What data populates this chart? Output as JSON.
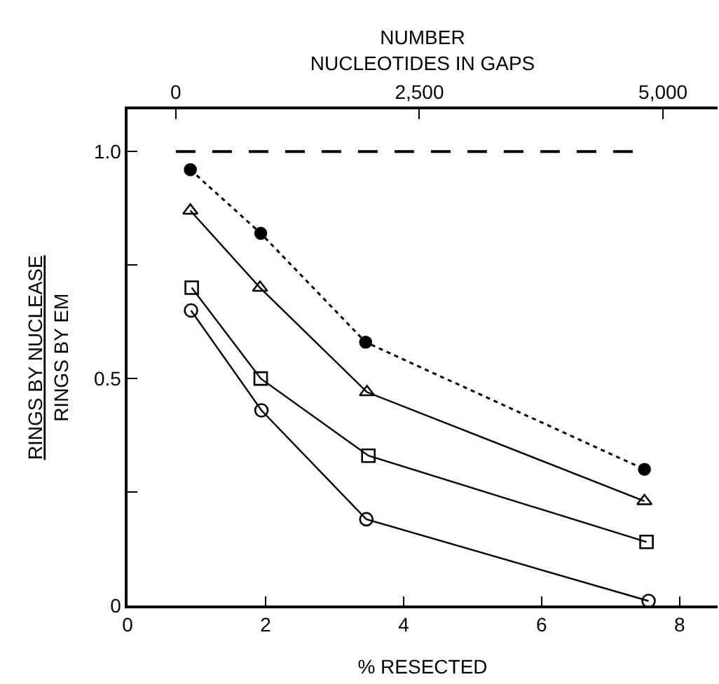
{
  "chart_data": {
    "type": "line",
    "xlabel": "% RESECTED",
    "ylabel": "RINGS BY NUCLEASE\nRINGS BY EM",
    "x2label": "NUMBER\nNUCLEOTIDES IN GAPS",
    "xlim": [
      0,
      8.55
    ],
    "xticks": [
      0,
      2,
      4,
      6,
      8
    ],
    "x2lim": [
      -495,
      5560
    ],
    "x2ticks": [
      0,
      {
        "value": 2500,
        "label": "2,500"
      },
      {
        "value": 5000,
        "label": "5,000"
      }
    ],
    "ylim": [
      0,
      1.093
    ],
    "yticks": [
      0,
      {
        "value": 0.25,
        "label": null
      },
      0.5,
      {
        "value": 0.75,
        "label": null
      },
      {
        "value": 1.0,
        "label": "1.0"
      }
    ],
    "series": [
      {
        "color": "#000000",
        "x": [
          0.7,
          7.36
        ],
        "values": [
          1.0,
          1.0
        ],
        "line_style": "dashed",
        "marker": "none"
      },
      {
        "color": "#000000",
        "x": [
          0.91,
          1.93,
          3.45,
          7.49
        ],
        "values": [
          0.96,
          0.82,
          0.58,
          0.3
        ],
        "line_style": "dotted",
        "marker": "circle"
      },
      {
        "color": "#000000",
        "x": [
          0.91,
          1.92,
          3.47,
          7.49
        ],
        "values": [
          0.87,
          0.7,
          0.47,
          0.23
        ],
        "line_style": "solid",
        "marker": "triangle-open"
      },
      {
        "color": "#000000",
        "x": [
          0.93,
          1.93,
          3.49,
          7.52
        ],
        "values": [
          0.7,
          0.5,
          0.33,
          0.14
        ],
        "line_style": "solid",
        "marker": "square-open"
      },
      {
        "color": "#000000",
        "x": [
          0.92,
          1.94,
          3.46,
          7.55
        ],
        "values": [
          0.65,
          0.43,
          0.19,
          0.01
        ],
        "line_style": "solid",
        "marker": "circle-open"
      }
    ]
  }
}
